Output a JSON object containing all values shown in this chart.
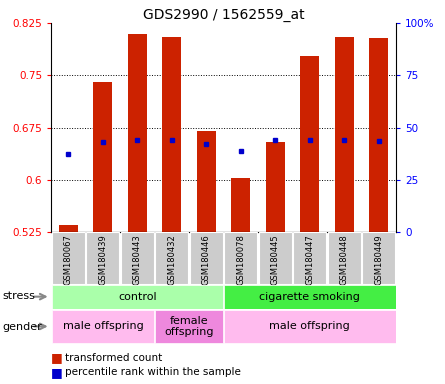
{
  "title": "GDS2990 / 1562559_at",
  "samples": [
    "GSM180067",
    "GSM180439",
    "GSM180443",
    "GSM180432",
    "GSM180446",
    "GSM180078",
    "GSM180445",
    "GSM180447",
    "GSM180448",
    "GSM180449"
  ],
  "bar_values": [
    0.535,
    0.74,
    0.81,
    0.805,
    0.67,
    0.603,
    0.655,
    0.778,
    0.805,
    0.803
  ],
  "bar_base": 0.525,
  "percentile_values": [
    0.637,
    0.655,
    0.657,
    0.658,
    0.652,
    0.642,
    0.657,
    0.657,
    0.658,
    0.656
  ],
  "ylim": [
    0.525,
    0.825
  ],
  "yticks_left": [
    0.525,
    0.6,
    0.675,
    0.75,
    0.825
  ],
  "yticks_right": [
    0,
    25,
    50,
    75,
    100
  ],
  "bar_color": "#cc2200",
  "percentile_color": "#0000cc",
  "stress_groups": [
    {
      "label": "control",
      "start": 0,
      "end": 4,
      "color": "#aaffaa"
    },
    {
      "label": "cigarette smoking",
      "start": 5,
      "end": 9,
      "color": "#44ee44"
    }
  ],
  "gender_groups": [
    {
      "label": "male offspring",
      "start": 0,
      "end": 2,
      "color": "#ffbbee"
    },
    {
      "label": "female\noffspring",
      "start": 3,
      "end": 4,
      "color": "#ee88dd"
    },
    {
      "label": "male offspring",
      "start": 5,
      "end": 9,
      "color": "#ffbbee"
    }
  ],
  "stress_label": "stress",
  "gender_label": "gender",
  "legend_red": "transformed count",
  "legend_blue": "percentile rank within the sample",
  "bg_color": "#ffffff",
  "tick_bg": "#cccccc"
}
